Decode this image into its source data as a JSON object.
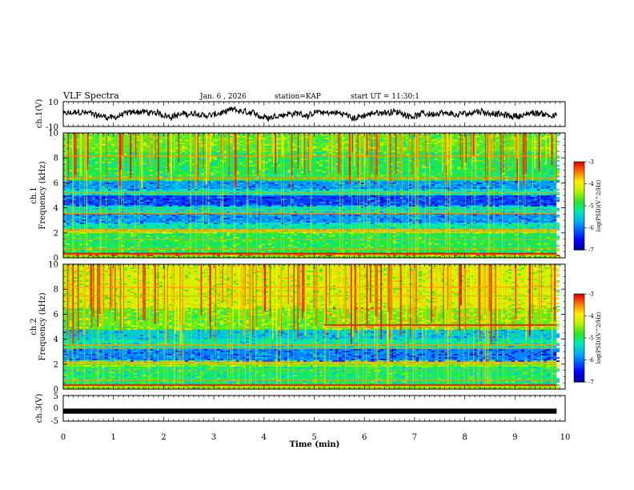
{
  "header": {
    "title": "VLF Spectra",
    "date": "Jan. 6 , 2026",
    "station": "station=KAP",
    "start_ut": "start UT = 11:30:1"
  },
  "chart_data": [
    {
      "type": "line",
      "name": "ch1-waveform",
      "ylabel": "ch.1(V)",
      "ylim": [
        -10,
        10
      ],
      "yticks": [
        "10",
        "-10"
      ],
      "xlim": [
        0,
        9.83
      ],
      "series": [
        {
          "name": "ch.1 voltage",
          "noise_amplitude": 3,
          "offset": 0
        }
      ]
    },
    {
      "type": "heatmap",
      "name": "ch1-spectrogram",
      "ylabel": "ch.1",
      "ylabel2": "Frequency (kHz)",
      "ylim": [
        0,
        10
      ],
      "yticks": [
        "0",
        "2",
        "4",
        "6",
        "8",
        "10"
      ],
      "colorbar": {
        "label": "log(PSD)(V^2/Hz)",
        "range": [
          -7,
          -3
        ],
        "ticks": [
          "-3",
          "-4",
          "-5",
          "-6",
          "-7"
        ]
      },
      "bands_khz": [
        {
          "from": 0,
          "to": 0.25,
          "level": -4.6
        },
        {
          "from": 0.25,
          "to": 0.45,
          "level": -3.3
        },
        {
          "from": 0.45,
          "to": 2.0,
          "level": -4.9
        },
        {
          "from": 2.0,
          "to": 2.3,
          "level": -4.4
        },
        {
          "from": 2.3,
          "to": 2.8,
          "level": -5.2
        },
        {
          "from": 2.8,
          "to": 3.6,
          "level": -5.8
        },
        {
          "from": 3.6,
          "to": 4.2,
          "level": -5.3
        },
        {
          "from": 4.2,
          "to": 5.0,
          "level": -6.2
        },
        {
          "from": 5.0,
          "to": 5.5,
          "level": -5.2
        },
        {
          "from": 5.5,
          "to": 6.2,
          "level": -5.8
        },
        {
          "from": 6.2,
          "to": 8.5,
          "level": -4.9
        },
        {
          "from": 8.5,
          "to": 10.0,
          "level": -4.6
        }
      ]
    },
    {
      "type": "heatmap",
      "name": "ch2-spectrogram",
      "ylabel": "ch.2",
      "ylabel2": "Frequency (kHz)",
      "ylim": [
        0,
        10
      ],
      "yticks": [
        "0",
        "2",
        "4",
        "6",
        "8",
        "10"
      ],
      "colorbar": {
        "label": "log(PSD)(V^2/Hz)",
        "range": [
          -7,
          -3
        ],
        "ticks": [
          "-3",
          "-4",
          "-5",
          "-6",
          "-7"
        ]
      },
      "bands_khz": [
        {
          "from": 0,
          "to": 0.3,
          "level": -4.4
        },
        {
          "from": 0.3,
          "to": 1.8,
          "level": -5.0
        },
        {
          "from": 1.8,
          "to": 2.3,
          "level": -4.5
        },
        {
          "from": 2.3,
          "to": 3.3,
          "level": -5.9
        },
        {
          "from": 3.3,
          "to": 4.0,
          "level": -5.2
        },
        {
          "from": 4.0,
          "to": 4.8,
          "level": -5.5
        },
        {
          "from": 4.8,
          "to": 6.5,
          "level": -4.6
        },
        {
          "from": 6.5,
          "to": 10.0,
          "level": -4.2
        }
      ],
      "change_at_min": 5.2
    },
    {
      "type": "line",
      "name": "ch3-waveform",
      "ylabel": "ch.3(V)",
      "ylim": [
        -5,
        5
      ],
      "yticks": [
        "5",
        "0",
        "-5"
      ],
      "xlabel": "Time (min)",
      "xlim": [
        0,
        10
      ],
      "xticks": [
        "0",
        "1",
        "2",
        "3",
        "4",
        "5",
        "6",
        "7",
        "8",
        "9",
        "10"
      ],
      "series": [
        {
          "name": "ch.3 voltage",
          "level": -1.1,
          "thickness_v": 0.9
        }
      ]
    }
  ]
}
